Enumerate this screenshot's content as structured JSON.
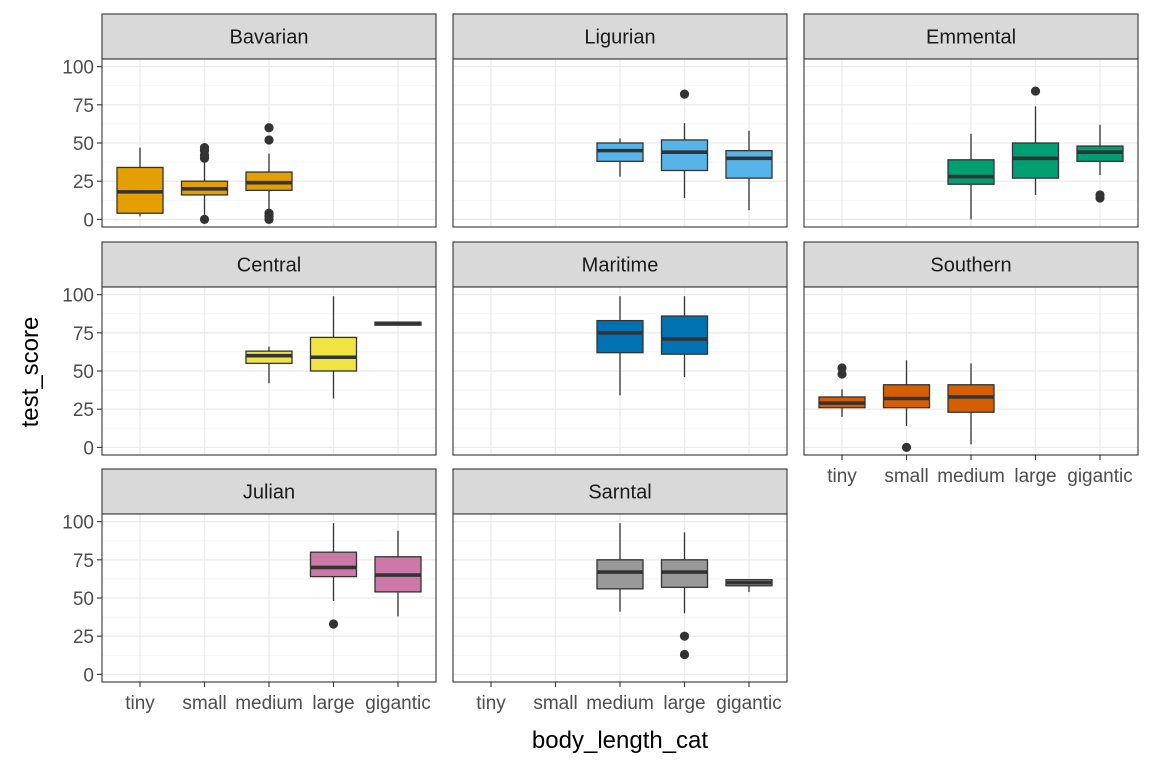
{
  "chart_data": {
    "type": "boxplot",
    "facet_by": "region",
    "xlabel": "body_length_cat",
    "ylabel": "test_score",
    "categories": [
      "tiny",
      "small",
      "medium",
      "large",
      "gigantic"
    ],
    "ylim": [
      -5,
      105
    ],
    "yticks": [
      0,
      25,
      50,
      75,
      100
    ],
    "grid": true,
    "legend": "none",
    "panels": [
      {
        "name": "Bavarian",
        "color": "#E69F00",
        "boxes": [
          {
            "x": "tiny",
            "q1": 4,
            "median": 18,
            "q3": 34,
            "whisker_low": 2,
            "whisker_high": 47,
            "outliers": []
          },
          {
            "x": "small",
            "q1": 16,
            "median": 20,
            "q3": 25,
            "whisker_low": 3,
            "whisker_high": 39,
            "outliers": [
              0,
              40,
              42,
              45,
              47
            ]
          },
          {
            "x": "medium",
            "q1": 19,
            "median": 24,
            "q3": 31,
            "whisker_low": 5,
            "whisker_high": 43,
            "outliers": [
              0,
              2,
              4,
              52,
              60
            ]
          }
        ]
      },
      {
        "name": "Ligurian",
        "color": "#56B4E9",
        "boxes": [
          {
            "x": "medium",
            "q1": 38,
            "median": 45,
            "q3": 50,
            "whisker_low": 28,
            "whisker_high": 53,
            "outliers": []
          },
          {
            "x": "large",
            "q1": 32,
            "median": 44,
            "q3": 52,
            "whisker_low": 14,
            "whisker_high": 63,
            "outliers": [
              82
            ]
          },
          {
            "x": "gigantic",
            "q1": 27,
            "median": 40,
            "q3": 45,
            "whisker_low": 6,
            "whisker_high": 58,
            "outliers": []
          }
        ]
      },
      {
        "name": "Emmental",
        "color": "#009E73",
        "boxes": [
          {
            "x": "medium",
            "q1": 23,
            "median": 28,
            "q3": 39,
            "whisker_low": 0,
            "whisker_high": 56,
            "outliers": []
          },
          {
            "x": "large",
            "q1": 27,
            "median": 40,
            "q3": 50,
            "whisker_low": 16,
            "whisker_high": 74,
            "outliers": [
              84
            ]
          },
          {
            "x": "gigantic",
            "q1": 38,
            "median": 44,
            "q3": 48,
            "whisker_low": 29,
            "whisker_high": 62,
            "outliers": [
              14,
              16
            ]
          }
        ]
      },
      {
        "name": "Central",
        "color": "#F0E442",
        "boxes": [
          {
            "x": "medium",
            "q1": 55,
            "median": 60,
            "q3": 63,
            "whisker_low": 42,
            "whisker_high": 66,
            "outliers": []
          },
          {
            "x": "large",
            "q1": 50,
            "median": 59,
            "q3": 72,
            "whisker_low": 32,
            "whisker_high": 99,
            "outliers": []
          },
          {
            "x": "gigantic",
            "q1": 80,
            "median": 81,
            "q3": 82,
            "whisker_low": 80,
            "whisker_high": 82,
            "outliers": []
          }
        ]
      },
      {
        "name": "Maritime",
        "color": "#0072B2",
        "boxes": [
          {
            "x": "medium",
            "q1": 62,
            "median": 75,
            "q3": 83,
            "whisker_low": 34,
            "whisker_high": 99,
            "outliers": []
          },
          {
            "x": "large",
            "q1": 61,
            "median": 71,
            "q3": 86,
            "whisker_low": 46,
            "whisker_high": 99,
            "outliers": []
          }
        ]
      },
      {
        "name": "Southern",
        "color": "#D55E00",
        "boxes": [
          {
            "x": "tiny",
            "q1": 26,
            "median": 29,
            "q3": 33,
            "whisker_low": 20,
            "whisker_high": 38,
            "outliers": [
              48,
              52
            ]
          },
          {
            "x": "small",
            "q1": 26,
            "median": 32,
            "q3": 41,
            "whisker_low": 14,
            "whisker_high": 57,
            "outliers": [
              0
            ]
          },
          {
            "x": "medium",
            "q1": 23,
            "median": 33,
            "q3": 41,
            "whisker_low": 2,
            "whisker_high": 55,
            "outliers": []
          }
        ]
      },
      {
        "name": "Julian",
        "color": "#CC79A7",
        "boxes": [
          {
            "x": "large",
            "q1": 64,
            "median": 70,
            "q3": 80,
            "whisker_low": 48,
            "whisker_high": 99,
            "outliers": [
              33
            ]
          },
          {
            "x": "gigantic",
            "q1": 54,
            "median": 65,
            "q3": 77,
            "whisker_low": 38,
            "whisker_high": 94,
            "outliers": []
          }
        ]
      },
      {
        "name": "Sarntal",
        "color": "#999999",
        "boxes": [
          {
            "x": "medium",
            "q1": 56,
            "median": 67,
            "q3": 75,
            "whisker_low": 41,
            "whisker_high": 99,
            "outliers": []
          },
          {
            "x": "large",
            "q1": 57,
            "median": 67,
            "q3": 75,
            "whisker_low": 40,
            "whisker_high": 93,
            "outliers": [
              13,
              25
            ]
          },
          {
            "x": "gigantic",
            "q1": 58,
            "median": 60,
            "q3": 62,
            "whisker_low": 54,
            "whisker_high": 62,
            "outliers": []
          }
        ]
      }
    ]
  }
}
